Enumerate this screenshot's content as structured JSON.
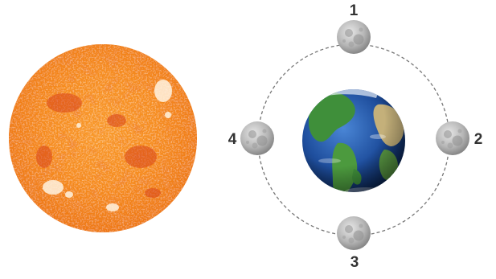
{
  "diagram": {
    "bodies": {
      "sun": {
        "name": "sun",
        "color": "#f07a14"
      },
      "earth": {
        "name": "earth",
        "color": "#2a5fb0"
      },
      "moon": {
        "name": "moon",
        "color": "#b8b8b8"
      }
    },
    "orbit": {
      "style": "dashed",
      "color": "#777777"
    },
    "moon_positions": [
      {
        "label": "1",
        "location": "top"
      },
      {
        "label": "2",
        "location": "right"
      },
      {
        "label": "3",
        "location": "bottom"
      },
      {
        "label": "4",
        "location": "left"
      }
    ]
  }
}
